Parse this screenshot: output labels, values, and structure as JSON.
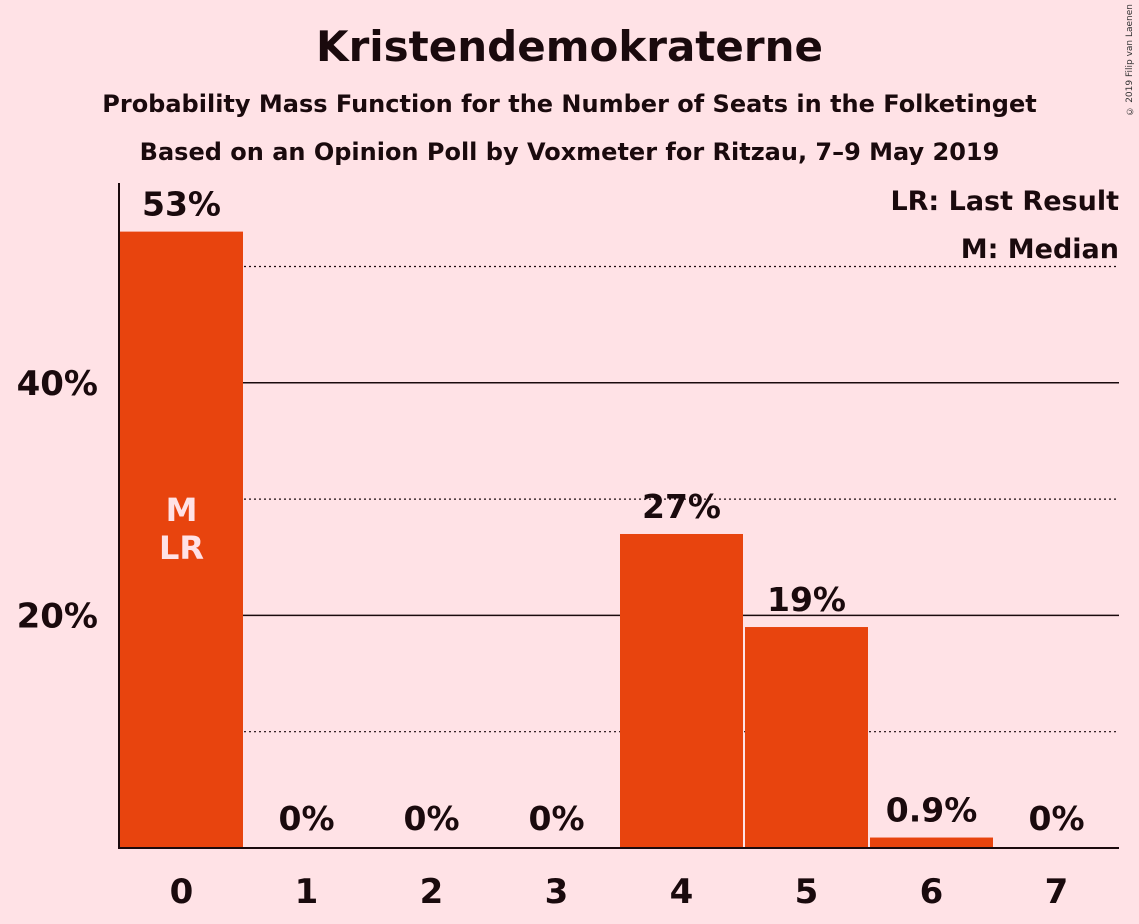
{
  "copyright": "© 2019 Filip van Laenen",
  "chart_data": {
    "type": "bar",
    "title": "Kristendemokraterne",
    "subtitle": "Probability Mass Function for the Number of Seats in the Folketinget",
    "subtitle2": "Based on an Opinion Poll by Voxmeter for Ritzau, 7–9 May 2019",
    "categories": [
      "0",
      "1",
      "2",
      "3",
      "4",
      "5",
      "6",
      "7"
    ],
    "values": [
      53,
      0,
      0,
      0,
      27,
      19,
      0.9,
      0
    ],
    "value_labels": [
      "53%",
      "0%",
      "0%",
      "0%",
      "27%",
      "19%",
      "0.9%",
      "0%"
    ],
    "ylim": [
      0,
      57
    ],
    "yticks": [
      20,
      40
    ],
    "ytick_labels": [
      "20%",
      "40%"
    ],
    "minor_gridlines": [
      10,
      30,
      50
    ],
    "bar_color": "#E8440E",
    "legend": [
      "LR: Last Result",
      "M: Median"
    ],
    "bar_annotation": {
      "category": "0",
      "lines": [
        "M",
        "LR"
      ]
    }
  }
}
